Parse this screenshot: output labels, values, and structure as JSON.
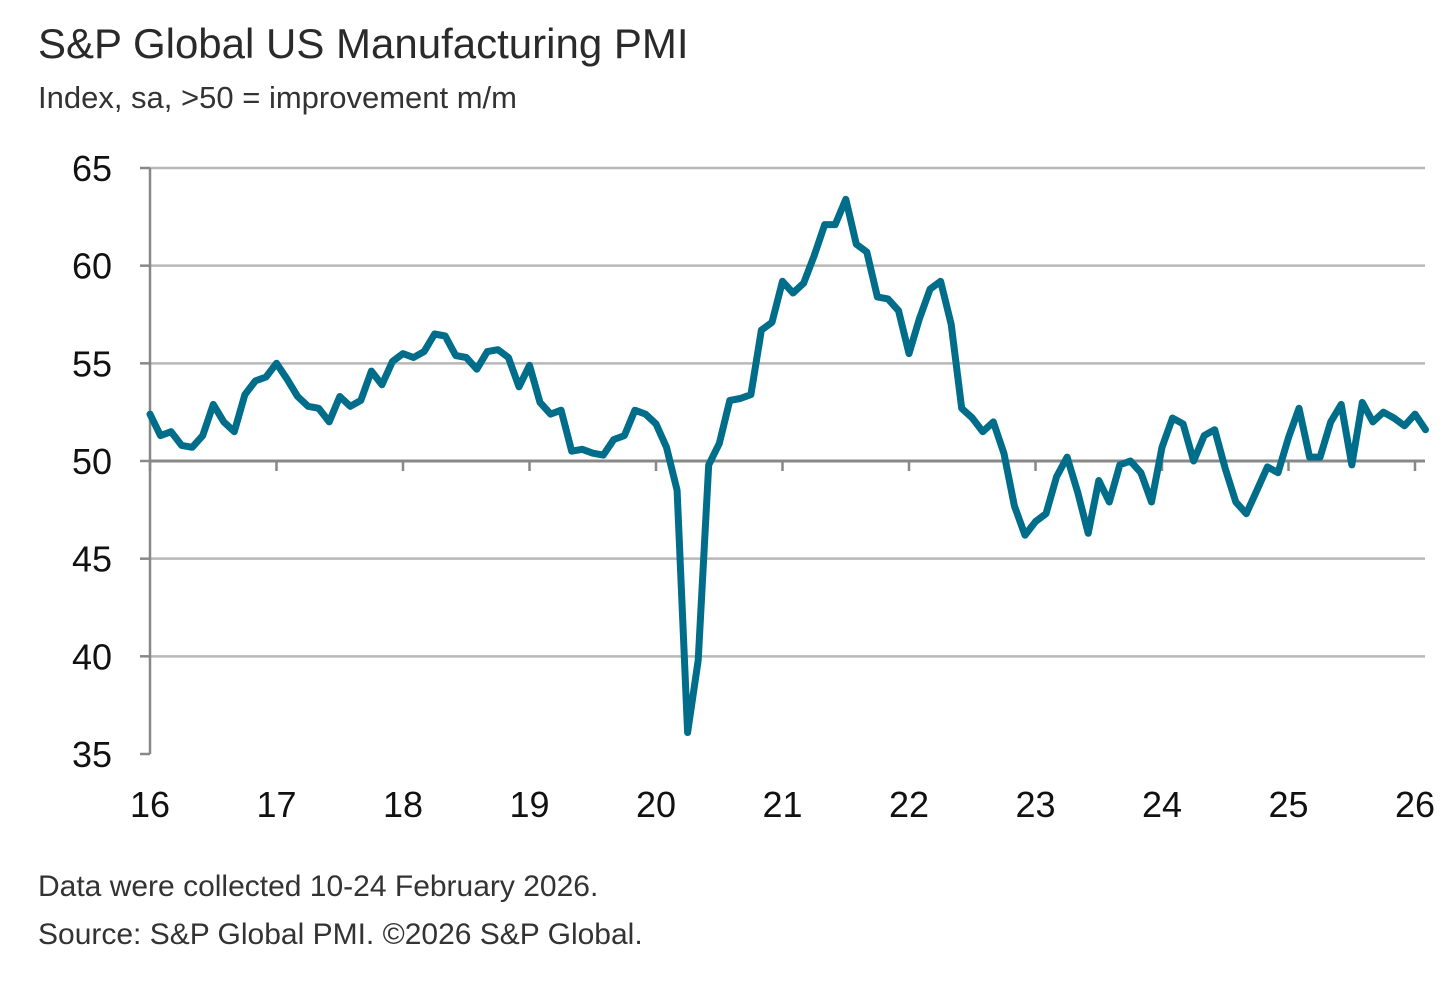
{
  "chart_data": {
    "type": "line",
    "title": "S&P Global US Manufacturing PMI",
    "subtitle": "Index, sa, >50 = improvement m/m",
    "xlabel": "",
    "ylabel": "",
    "ylim": [
      35,
      65
    ],
    "yticks": [
      "35",
      "40",
      "45",
      "50",
      "55",
      "60",
      "65"
    ],
    "xticks": [
      "16",
      "17",
      "18",
      "19",
      "20",
      "21",
      "22",
      "23",
      "24",
      "25",
      "26"
    ],
    "x_start": "2016-01",
    "frequency": "monthly",
    "grid": true,
    "series": [
      {
        "name": "US Manufacturing PMI",
        "color": "#006e8a",
        "values": [
          52.4,
          51.3,
          51.5,
          50.8,
          50.7,
          51.3,
          52.9,
          52.0,
          51.5,
          53.4,
          54.1,
          54.3,
          55.0,
          54.2,
          53.3,
          52.8,
          52.7,
          52.0,
          53.3,
          52.8,
          53.1,
          54.6,
          53.9,
          55.1,
          55.5,
          55.3,
          55.6,
          56.5,
          56.4,
          55.4,
          55.3,
          54.7,
          55.6,
          55.7,
          55.3,
          53.8,
          54.9,
          53.0,
          52.4,
          52.6,
          50.5,
          50.6,
          50.4,
          50.3,
          51.1,
          51.3,
          52.6,
          52.4,
          51.9,
          50.7,
          48.5,
          36.1,
          39.8,
          49.8,
          50.9,
          53.1,
          53.2,
          53.4,
          56.7,
          57.1,
          59.2,
          58.6,
          59.1,
          60.5,
          62.1,
          62.1,
          63.4,
          61.1,
          60.7,
          58.4,
          58.3,
          57.7,
          55.5,
          57.3,
          58.8,
          59.2,
          57.0,
          52.7,
          52.2,
          51.5,
          52.0,
          50.4,
          47.7,
          46.2,
          46.9,
          47.3,
          49.2,
          50.2,
          48.4,
          46.3,
          49.0,
          47.9,
          49.8,
          50.0,
          49.4,
          47.9,
          50.7,
          52.2,
          51.9,
          50.0,
          51.3,
          51.6,
          49.6,
          47.9,
          47.3,
          48.5,
          49.7,
          49.4,
          51.2,
          52.7,
          50.2,
          50.2,
          52.0,
          52.9,
          49.8,
          53.0,
          52.0,
          52.5,
          52.2,
          51.8,
          52.4,
          51.6
        ]
      }
    ]
  },
  "footer": {
    "note": "Data were collected 10-24 February 2026.",
    "source": "Source: S&P Global PMI. ©2026 S&P Global."
  }
}
